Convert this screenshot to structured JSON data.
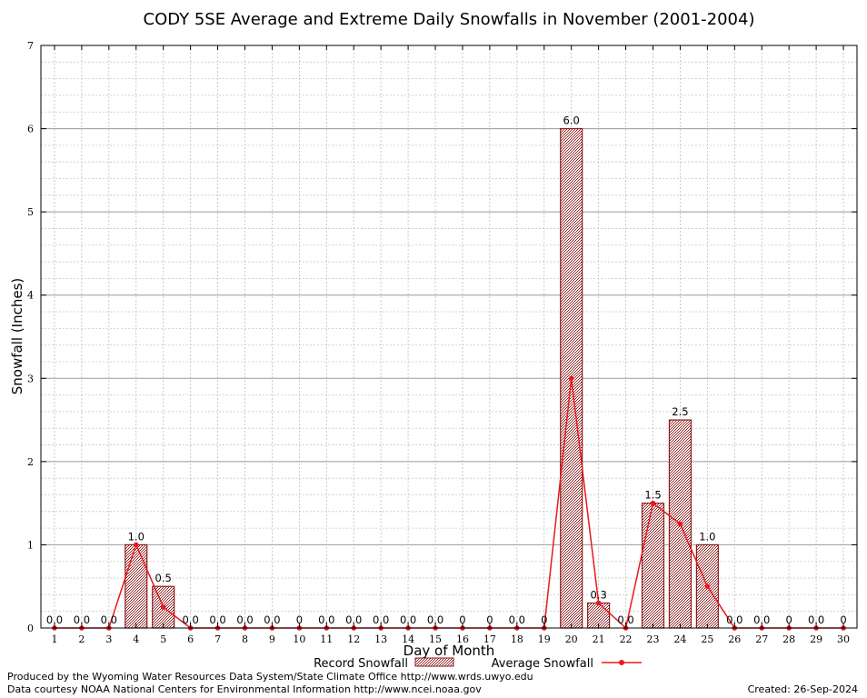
{
  "chart_data": {
    "type": "bar",
    "title": "CODY 5SE Average and Extreme Daily Snowfalls in November (2001-2004)",
    "xlabel": "Day of Month",
    "ylabel": "Snowfall (Inches)",
    "ylim": [
      0,
      7
    ],
    "yticks": [
      "0",
      "1",
      "2",
      "3",
      "4",
      "5",
      "6",
      "7"
    ],
    "categories": [
      "1",
      "2",
      "3",
      "4",
      "5",
      "6",
      "7",
      "8",
      "9",
      "10",
      "11",
      "12",
      "13",
      "14",
      "15",
      "16",
      "17",
      "18",
      "19",
      "20",
      "21",
      "22",
      "23",
      "24",
      "25",
      "26",
      "27",
      "28",
      "29",
      "30"
    ],
    "grid": true,
    "series": [
      {
        "name": "Record Snowfall",
        "kind": "bar",
        "values": [
          0,
          0,
          0,
          1.0,
          0.5,
          0,
          0,
          0,
          0,
          0,
          0,
          0,
          0,
          0,
          0,
          0,
          0,
          0,
          0,
          6.0,
          0.3,
          0,
          1.5,
          2.5,
          1.0,
          0,
          0,
          0,
          0,
          0
        ],
        "labels": [
          "0.0",
          "0.0",
          "0.0",
          "1.0",
          "0.5",
          "0.0",
          "0.0",
          "0.0",
          "0.0",
          "0",
          "0.0",
          "0.0",
          "0.0",
          "0.0",
          "0.0",
          "0",
          "0",
          "0.0",
          "0",
          "6.0",
          "0.3",
          "0.0",
          "1.5",
          "2.5",
          "1.0",
          "0.0",
          "0.0",
          "0",
          "0.0",
          "0"
        ],
        "color": "#8b1a1a"
      },
      {
        "name": "Average Snowfall",
        "kind": "line",
        "values": [
          0,
          0,
          0,
          1.0,
          0.25,
          0,
          0,
          0,
          0,
          0,
          0,
          0,
          0,
          0,
          0,
          0,
          0,
          0,
          0,
          3.0,
          0.3,
          0,
          1.5,
          1.25,
          0.5,
          0,
          0,
          0,
          0,
          0
        ],
        "color": "#e8191e"
      }
    ],
    "legend_position": "bottom"
  },
  "footer": {
    "produced_by": "Produced by the Wyoming Water Resources Data System/State Climate Office http://www.wrds.uwyo.edu",
    "courtesy": "Data courtesy NOAA National Centers for Environmental Information http://www.ncei.noaa.gov",
    "created": "Created: 26-Sep-2024"
  }
}
